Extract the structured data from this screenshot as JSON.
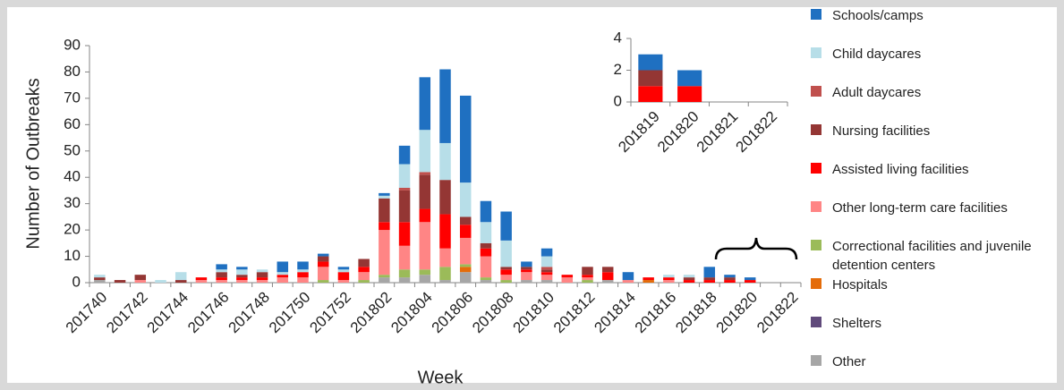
{
  "chart_data": [
    {
      "type": "bar",
      "stacked": true,
      "y_label": "Number of Outbreaks",
      "x_label": "Week",
      "categories": [
        "201740",
        null,
        "201742",
        null,
        "201744",
        null,
        "201746",
        null,
        "201748",
        null,
        "201750",
        null,
        "201752",
        null,
        "201802",
        null,
        "201804",
        null,
        "201806",
        null,
        "201808",
        null,
        "201810",
        null,
        "201812",
        null,
        "201814",
        null,
        "201816",
        null,
        "201818",
        null,
        "201820",
        null,
        "201822"
      ],
      "ylim": [
        0,
        90
      ],
      "yticks": [
        0,
        10,
        20,
        30,
        40,
        50,
        60,
        70,
        80,
        90
      ],
      "series": [
        {
          "name": "Schools/camps",
          "color": "#1f70c1",
          "values": [
            0,
            0,
            0,
            0,
            0,
            0,
            2,
            1,
            0,
            4,
            3,
            1,
            1,
            0,
            1,
            7,
            20,
            28,
            33,
            8,
            11,
            2,
            3,
            0,
            0,
            0,
            3,
            0,
            0,
            0,
            4,
            1,
            1,
            0,
            0
          ]
        },
        {
          "name": "Child daycares",
          "color": "#b7dee8",
          "values": [
            1,
            0,
            0,
            1,
            3,
            0,
            1,
            2,
            1,
            1,
            1,
            0,
            1,
            0,
            1,
            9,
            16,
            14,
            13,
            8,
            10,
            0,
            4,
            0,
            0,
            0,
            0,
            0,
            1,
            1,
            0,
            0,
            0,
            0,
            0
          ]
        },
        {
          "name": "Adult daycares",
          "color": "#c0504d",
          "values": [
            0,
            0,
            0,
            0,
            0,
            0,
            0,
            0,
            0,
            0,
            0,
            0,
            0,
            0,
            0,
            1,
            1,
            0,
            0,
            0,
            0,
            0,
            1,
            0,
            0,
            0,
            0,
            0,
            0,
            0,
            0,
            0,
            0,
            0,
            0
          ]
        },
        {
          "name": "Nursing facilities",
          "color": "#943634",
          "values": [
            1,
            1,
            2,
            0,
            1,
            0,
            2,
            1,
            2,
            0,
            0,
            2,
            0,
            3,
            9,
            12,
            13,
            13,
            3,
            2,
            1,
            1,
            1,
            0,
            3,
            2,
            0,
            0,
            0,
            1,
            1,
            1,
            0,
            0,
            0
          ]
        },
        {
          "name": "Assisted living facilities",
          "color": "#ff0000",
          "values": [
            0,
            0,
            0,
            0,
            0,
            1,
            1,
            1,
            1,
            1,
            2,
            2,
            3,
            2,
            3,
            9,
            5,
            13,
            5,
            3,
            2,
            1,
            1,
            1,
            1,
            3,
            0,
            1,
            1,
            1,
            1,
            1,
            1,
            0,
            0
          ]
        },
        {
          "name": "Other long-term care facilities",
          "color": "#ff8585",
          "values": [
            0,
            0,
            1,
            0,
            0,
            1,
            1,
            1,
            1,
            2,
            2,
            5,
            1,
            3,
            17,
            9,
            18,
            7,
            10,
            8,
            2,
            3,
            2,
            2,
            1,
            0,
            1,
            0,
            1,
            0,
            0,
            0,
            0,
            0,
            0
          ]
        },
        {
          "name": "Correctional facilities and juvenile detention centers",
          "color": "#9bbb59",
          "values": [
            0,
            0,
            0,
            0,
            0,
            0,
            0,
            0,
            0,
            0,
            0,
            1,
            0,
            1,
            1,
            3,
            2,
            5,
            1,
            1,
            1,
            0,
            0,
            0,
            1,
            0,
            0,
            0,
            0,
            0,
            0,
            0,
            0,
            0,
            0
          ]
        },
        {
          "name": "Hospitals",
          "color": "#e46c0a",
          "values": [
            0,
            0,
            0,
            0,
            0,
            0,
            0,
            0,
            0,
            0,
            0,
            0,
            0,
            0,
            0,
            0,
            0,
            0,
            2,
            0,
            0,
            0,
            0,
            0,
            0,
            0,
            0,
            1,
            0,
            0,
            0,
            0,
            0,
            0,
            0
          ]
        },
        {
          "name": "Shelters",
          "color": "#604a7b",
          "values": [
            0,
            0,
            0,
            0,
            0,
            0,
            0,
            0,
            0,
            0,
            0,
            0,
            0,
            0,
            0,
            0,
            0,
            0,
            0,
            0,
            0,
            0,
            0,
            0,
            0,
            0,
            0,
            0,
            0,
            0,
            0,
            0,
            0,
            0,
            0
          ]
        },
        {
          "name": "Other",
          "color": "#a6a6a6",
          "values": [
            1,
            0,
            0,
            0,
            0,
            0,
            0,
            0,
            0,
            0,
            0,
            0,
            0,
            0,
            2,
            2,
            3,
            1,
            4,
            1,
            0,
            1,
            1,
            0,
            0,
            1,
            0,
            0,
            0,
            0,
            0,
            0,
            0,
            0,
            0
          ]
        }
      ]
    },
    {
      "type": "bar",
      "stacked": true,
      "categories": [
        "201819",
        "201820",
        "201821",
        "201822"
      ],
      "ylim": [
        0,
        4
      ],
      "yticks": [
        0,
        2,
        4
      ],
      "series": [
        {
          "color": "#1f70c1",
          "values": [
            1,
            1,
            0,
            0
          ]
        },
        {
          "color": "#943634",
          "values": [
            1,
            0,
            0,
            0
          ]
        },
        {
          "color": "#ff0000",
          "values": [
            1,
            1,
            0,
            0
          ]
        }
      ]
    }
  ]
}
